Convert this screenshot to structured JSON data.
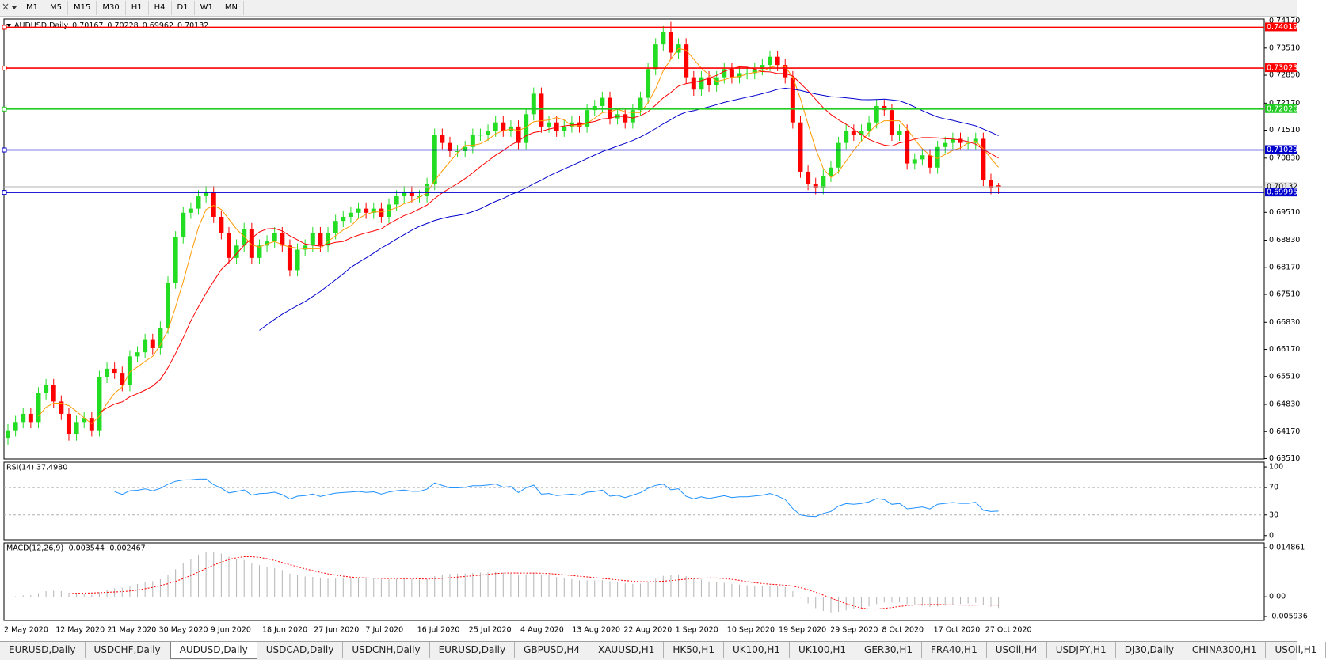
{
  "toolbar": {
    "timeframes": [
      "M1",
      "M5",
      "M15",
      "M30",
      "H1",
      "H4",
      "D1",
      "W1",
      "MN"
    ]
  },
  "chart_data": {
    "type": "candlestick",
    "symbol": "AUDUSD,Daily",
    "candles": [
      [
        0.64,
        0.6435,
        0.6385,
        0.642
      ],
      [
        0.642,
        0.6455,
        0.6405,
        0.644
      ],
      [
        0.644,
        0.6475,
        0.6425,
        0.646
      ],
      [
        0.646,
        0.6475,
        0.6425,
        0.644
      ],
      [
        0.644,
        0.6525,
        0.6425,
        0.651
      ],
      [
        0.651,
        0.6545,
        0.6495,
        0.653
      ],
      [
        0.653,
        0.6545,
        0.6475,
        0.649
      ],
      [
        0.649,
        0.6505,
        0.6445,
        0.646
      ],
      [
        0.646,
        0.6475,
        0.6395,
        0.641
      ],
      [
        0.641,
        0.6455,
        0.6395,
        0.644
      ],
      [
        0.644,
        0.6465,
        0.6425,
        0.645
      ],
      [
        0.645,
        0.6465,
        0.6405,
        0.642
      ],
      [
        0.642,
        0.6565,
        0.6405,
        0.655
      ],
      [
        0.655,
        0.6585,
        0.6535,
        0.657
      ],
      [
        0.657,
        0.6585,
        0.6545,
        0.656
      ],
      [
        0.656,
        0.6575,
        0.6515,
        0.653
      ],
      [
        0.653,
        0.6615,
        0.6515,
        0.66
      ],
      [
        0.66,
        0.6625,
        0.6585,
        0.661
      ],
      [
        0.661,
        0.6655,
        0.6595,
        0.664
      ],
      [
        0.664,
        0.6655,
        0.6605,
        0.662
      ],
      [
        0.662,
        0.6685,
        0.6605,
        0.667
      ],
      [
        0.667,
        0.6795,
        0.6655,
        0.678
      ],
      [
        0.678,
        0.6905,
        0.6765,
        0.689
      ],
      [
        0.689,
        0.6965,
        0.6875,
        0.695
      ],
      [
        0.695,
        0.6975,
        0.6935,
        0.696
      ],
      [
        0.696,
        0.7005,
        0.6945,
        0.699
      ],
      [
        0.699,
        0.7015,
        0.6975,
        0.7
      ],
      [
        0.7,
        0.7015,
        0.6925,
        0.694
      ],
      [
        0.694,
        0.6955,
        0.6885,
        0.69
      ],
      [
        0.69,
        0.6915,
        0.6825,
        0.684
      ],
      [
        0.684,
        0.6885,
        0.6825,
        0.687
      ],
      [
        0.687,
        0.6925,
        0.6855,
        0.691
      ],
      [
        0.691,
        0.6925,
        0.6825,
        0.684
      ],
      [
        0.684,
        0.6885,
        0.6825,
        0.687
      ],
      [
        0.687,
        0.6895,
        0.6855,
        0.688
      ],
      [
        0.688,
        0.6915,
        0.6865,
        0.69
      ],
      [
        0.69,
        0.6915,
        0.6855,
        0.687
      ],
      [
        0.687,
        0.6885,
        0.6795,
        0.681
      ],
      [
        0.681,
        0.6875,
        0.6795,
        0.686
      ],
      [
        0.686,
        0.6885,
        0.6845,
        0.687
      ],
      [
        0.687,
        0.6915,
        0.6855,
        0.69
      ],
      [
        0.69,
        0.6915,
        0.6855,
        0.687
      ],
      [
        0.687,
        0.6915,
        0.6855,
        0.69
      ],
      [
        0.69,
        0.6945,
        0.6885,
        0.693
      ],
      [
        0.693,
        0.6955,
        0.6915,
        0.694
      ],
      [
        0.694,
        0.6965,
        0.6925,
        0.695
      ],
      [
        0.695,
        0.6975,
        0.6935,
        0.696
      ],
      [
        0.696,
        0.6975,
        0.6935,
        0.695
      ],
      [
        0.695,
        0.6975,
        0.6935,
        0.696
      ],
      [
        0.696,
        0.6975,
        0.6925,
        0.694
      ],
      [
        0.694,
        0.6985,
        0.6925,
        0.697
      ],
      [
        0.697,
        0.7005,
        0.6955,
        0.699
      ],
      [
        0.699,
        0.7015,
        0.6975,
        0.7
      ],
      [
        0.7,
        0.7015,
        0.6975,
        0.699
      ],
      [
        0.699,
        0.7005,
        0.6975,
        0.699
      ],
      [
        0.699,
        0.7035,
        0.6975,
        0.702
      ],
      [
        0.702,
        0.7155,
        0.7005,
        0.714
      ],
      [
        0.714,
        0.7155,
        0.7105,
        0.712
      ],
      [
        0.712,
        0.7135,
        0.7085,
        0.71
      ],
      [
        0.71,
        0.7115,
        0.7085,
        0.71
      ],
      [
        0.71,
        0.7125,
        0.7085,
        0.711
      ],
      [
        0.711,
        0.7155,
        0.7095,
        0.714
      ],
      [
        0.714,
        0.7155,
        0.7125,
        0.714
      ],
      [
        0.714,
        0.7165,
        0.7125,
        0.715
      ],
      [
        0.715,
        0.7185,
        0.7135,
        0.717
      ],
      [
        0.717,
        0.7185,
        0.7135,
        0.715
      ],
      [
        0.715,
        0.7175,
        0.7135,
        0.716
      ],
      [
        0.716,
        0.7175,
        0.7105,
        0.712
      ],
      [
        0.712,
        0.7205,
        0.7105,
        0.719
      ],
      [
        0.719,
        0.7255,
        0.7175,
        0.724
      ],
      [
        0.724,
        0.7255,
        0.7145,
        0.716
      ],
      [
        0.716,
        0.7185,
        0.7145,
        0.717
      ],
      [
        0.717,
        0.7185,
        0.7135,
        0.715
      ],
      [
        0.715,
        0.7175,
        0.7135,
        0.716
      ],
      [
        0.716,
        0.7185,
        0.7145,
        0.717
      ],
      [
        0.717,
        0.7185,
        0.7145,
        0.716
      ],
      [
        0.716,
        0.7215,
        0.7145,
        0.72
      ],
      [
        0.72,
        0.7225,
        0.7185,
        0.721
      ],
      [
        0.721,
        0.7245,
        0.7195,
        0.723
      ],
      [
        0.723,
        0.7245,
        0.7165,
        0.718
      ],
      [
        0.718,
        0.7205,
        0.7165,
        0.719
      ],
      [
        0.719,
        0.7205,
        0.7155,
        0.717
      ],
      [
        0.717,
        0.7215,
        0.7155,
        0.72
      ],
      [
        0.72,
        0.7245,
        0.7185,
        0.723
      ],
      [
        0.723,
        0.7315,
        0.7215,
        0.73
      ],
      [
        0.73,
        0.7375,
        0.7285,
        0.736
      ],
      [
        0.736,
        0.7405,
        0.7345,
        0.739
      ],
      [
        0.739,
        0.7415,
        0.7325,
        0.734
      ],
      [
        0.734,
        0.7375,
        0.7325,
        0.736
      ],
      [
        0.736,
        0.7375,
        0.7265,
        0.728
      ],
      [
        0.728,
        0.7295,
        0.7235,
        0.725
      ],
      [
        0.725,
        0.7295,
        0.7235,
        0.728
      ],
      [
        0.728,
        0.7295,
        0.7245,
        0.726
      ],
      [
        0.726,
        0.7295,
        0.7245,
        0.728
      ],
      [
        0.728,
        0.7315,
        0.7265,
        0.73
      ],
      [
        0.73,
        0.7315,
        0.7265,
        0.728
      ],
      [
        0.728,
        0.7305,
        0.7265,
        0.729
      ],
      [
        0.729,
        0.7305,
        0.7275,
        0.729
      ],
      [
        0.729,
        0.7315,
        0.7275,
        0.73
      ],
      [
        0.73,
        0.7325,
        0.7285,
        0.731
      ],
      [
        0.731,
        0.7345,
        0.7295,
        0.733
      ],
      [
        0.733,
        0.7345,
        0.7295,
        0.731
      ],
      [
        0.731,
        0.7325,
        0.7265,
        0.728
      ],
      [
        0.728,
        0.7295,
        0.7155,
        0.717
      ],
      [
        0.717,
        0.7185,
        0.7035,
        0.705
      ],
      [
        0.705,
        0.7065,
        0.7005,
        0.702
      ],
      [
        0.702,
        0.7035,
        0.6995,
        0.701
      ],
      [
        0.701,
        0.7055,
        0.6995,
        0.704
      ],
      [
        0.704,
        0.7075,
        0.7025,
        0.706
      ],
      [
        0.706,
        0.7135,
        0.7045,
        0.712
      ],
      [
        0.712,
        0.7165,
        0.7105,
        0.715
      ],
      [
        0.715,
        0.7165,
        0.7125,
        0.714
      ],
      [
        0.714,
        0.7165,
        0.7125,
        0.715
      ],
      [
        0.715,
        0.7185,
        0.7135,
        0.717
      ],
      [
        0.717,
        0.7225,
        0.7155,
        0.721
      ],
      [
        0.721,
        0.7225,
        0.7185,
        0.72
      ],
      [
        0.72,
        0.7215,
        0.7125,
        0.714
      ],
      [
        0.714,
        0.7165,
        0.7125,
        0.715
      ],
      [
        0.715,
        0.7165,
        0.7055,
        0.707
      ],
      [
        0.707,
        0.7095,
        0.7055,
        0.708
      ],
      [
        0.708,
        0.7105,
        0.7065,
        0.709
      ],
      [
        0.709,
        0.7105,
        0.7045,
        0.706
      ],
      [
        0.706,
        0.7125,
        0.7045,
        0.711
      ],
      [
        0.711,
        0.7135,
        0.7095,
        0.712
      ],
      [
        0.712,
        0.7145,
        0.7105,
        0.713
      ],
      [
        0.713,
        0.7145,
        0.7105,
        0.712
      ],
      [
        0.712,
        0.7135,
        0.7105,
        0.712
      ],
      [
        0.712,
        0.7145,
        0.7105,
        0.713
      ],
      [
        0.713,
        0.7145,
        0.7015,
        0.703
      ],
      [
        0.703,
        0.7045,
        0.6995,
        0.701
      ],
      [
        0.70167,
        0.70228,
        0.69962,
        0.70132
      ]
    ],
    "up_color": "#22dd22",
    "down_color": "#ff0000",
    "ylim": [
      0.635,
      0.7422
    ],
    "yticks": [
      {
        "value": 0.7417,
        "label": "0.74170"
      },
      {
        "value": 0.7351,
        "label": "0.73510"
      },
      {
        "value": 0.7285,
        "label": "0.72850"
      },
      {
        "value": 0.7217,
        "label": "0.72170"
      },
      {
        "value": 0.7151,
        "label": "0.71510"
      },
      {
        "value": 0.7083,
        "label": "0.70830"
      },
      {
        "value": 0.6951,
        "label": "0.69510"
      },
      {
        "value": 0.6883,
        "label": "0.68830"
      },
      {
        "value": 0.6817,
        "label": "0.68170"
      },
      {
        "value": 0.6751,
        "label": "0.67510"
      },
      {
        "value": 0.6683,
        "label": "0.66830"
      },
      {
        "value": 0.6617,
        "label": "0.66170"
      },
      {
        "value": 0.6551,
        "label": "0.65510"
      },
      {
        "value": 0.6483,
        "label": "0.64830"
      },
      {
        "value": 0.6417,
        "label": "0.64170"
      },
      {
        "value": 0.6351,
        "label": "0.63510"
      }
    ],
    "levels": [
      {
        "value": 0.74019,
        "color": "#ff0000"
      },
      {
        "value": 0.73023,
        "color": "#ff0000"
      },
      {
        "value": 0.72026,
        "color": "#22cc22"
      },
      {
        "value": 0.71029,
        "color": "#0000cc"
      },
      {
        "value": 0.69995,
        "color": "#0000cc"
      }
    ],
    "moving_average_colors": [
      "#ff9900",
      "#ff0000",
      "#0000cc"
    ],
    "x_labels": [
      "2 May 2020",
      "12 May 2020",
      "21 May 2020",
      "30 May 2020",
      "9 Jun 2020",
      "18 Jun 2020",
      "27 Jun 2020",
      "7 Jul 2020",
      "16 Jul 2020",
      "25 Jul 2020",
      "4 Aug 2020",
      "13 Aug 2020",
      "22 Aug 2020",
      "1 Sep 2020",
      "10 Sep 2020",
      "19 Sep 2020",
      "29 Sep 2020",
      "8 Oct 2020",
      "17 Oct 2020",
      "27 Oct 2020"
    ],
    "rsi": {
      "label": "RSI(14) 37.4980",
      "ylim": [
        -6,
        107
      ],
      "yticks": [
        100,
        70,
        30,
        0
      ],
      "color": "#1e90ff"
    },
    "macd": {
      "label": "MACD(12,26,9) -0.003544 -0.002467",
      "ylim": [
        -0.00713,
        0.0163
      ],
      "yticks": [
        0.014861,
        {
          "value": 0,
          "label": "0.00"
        },
        -0.005936
      ],
      "histogram_color": "#b4b4b4",
      "signal_color": "#ff0000"
    }
  },
  "tabs": [
    "EURUSD,Daily",
    "USDCHF,Daily",
    "AUDUSD,Daily",
    "USDCAD,Daily",
    "USDCNH,Daily",
    "EURUSD,Daily",
    "GBPUSD,H4",
    "XAUUSD,H1",
    "HK50,H1",
    "UK100,H1",
    "UK100,H1",
    "GER30,H1",
    "FRA40,H1",
    "USOil,H4",
    "USDJPY,H1",
    "DJ30,Daily",
    "CHINA300,H1",
    "USOil,H1"
  ],
  "active_tab": 2
}
